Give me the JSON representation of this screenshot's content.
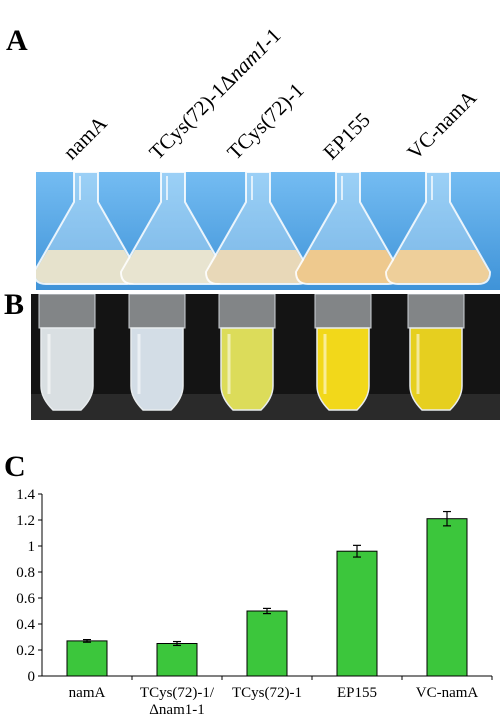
{
  "panels": {
    "a": "A",
    "b": "B",
    "c": "C"
  },
  "sample_labels": [
    {
      "main": "namA",
      "italic": ""
    },
    {
      "main": "TCys(72)-1Δ",
      "italic": "nam1",
      "tail": "-1"
    },
    {
      "main": "TCys(72)-1",
      "italic": ""
    },
    {
      "main": "EP155",
      "italic": ""
    },
    {
      "main": "VC-namA",
      "italic": ""
    }
  ],
  "colors": {
    "bar": "#3cc63c",
    "background_photo_a": "#5aa9e8",
    "background_photo_b": "#141414"
  },
  "flask_liquid_colors": [
    "#e6e2cc",
    "#e8e4d0",
    "#e8d8b8",
    "#eec98e",
    "#eecf9a"
  ],
  "tube_liquid_colors": [
    "#d9dfe2",
    "#d3dde6",
    "#dcdc5a",
    "#f2d81a",
    "#e6cf1f"
  ],
  "chart_data": {
    "type": "bar",
    "categories": [
      "namA",
      "TCys(72)-1/\nΔnam1-1",
      "TCys(72)-1",
      "EP155",
      "VC-namA"
    ],
    "category_lines": [
      [
        "namA"
      ],
      [
        "TCys(72)-1/",
        "Δnam1-1"
      ],
      [
        "TCys(72)-1"
      ],
      [
        "EP155"
      ],
      [
        "VC-namA"
      ]
    ],
    "values": [
      0.27,
      0.25,
      0.5,
      0.96,
      1.21
    ],
    "errors": [
      0.01,
      0.015,
      0.02,
      0.045,
      0.055
    ],
    "ylim": [
      0,
      1.4
    ],
    "yticks": [
      "0",
      "0.2",
      "0.4",
      "0.6",
      "0.8",
      "1",
      "1.2",
      "1.4"
    ],
    "grid": false,
    "xlabel": "",
    "ylabel": ""
  }
}
